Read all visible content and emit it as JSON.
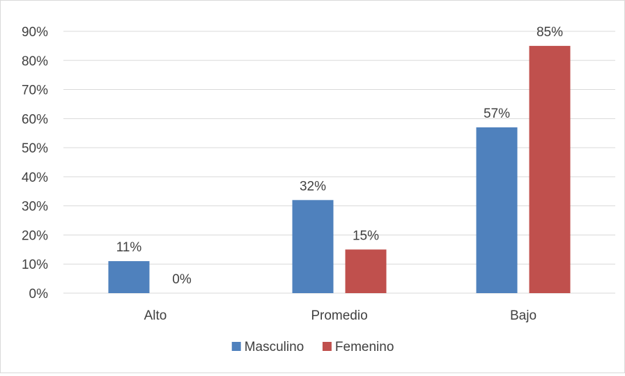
{
  "chart_data": {
    "type": "bar",
    "title": "",
    "xlabel": "",
    "ylabel": "",
    "categories": [
      "Alto",
      "Promedio",
      "Bajo"
    ],
    "series": [
      {
        "name": "Masculino",
        "values": [
          11,
          32,
          57
        ],
        "labels": [
          "11%",
          "32%",
          "57%"
        ],
        "color": "#4f81bd"
      },
      {
        "name": "Femenino",
        "values": [
          0,
          15,
          85
        ],
        "labels": [
          "0%",
          "15%",
          "85%"
        ],
        "color": "#c0504d"
      }
    ],
    "ylim": [
      0,
      90
    ],
    "yticks": [
      0,
      10,
      20,
      30,
      40,
      50,
      60,
      70,
      80,
      90
    ],
    "ytick_labels": [
      "0%",
      "10%",
      "20%",
      "30%",
      "40%",
      "50%",
      "60%",
      "70%",
      "80%",
      "90%"
    ],
    "grid": true,
    "gridline_color": "#d9d9d9",
    "legend_position": "bottom"
  }
}
